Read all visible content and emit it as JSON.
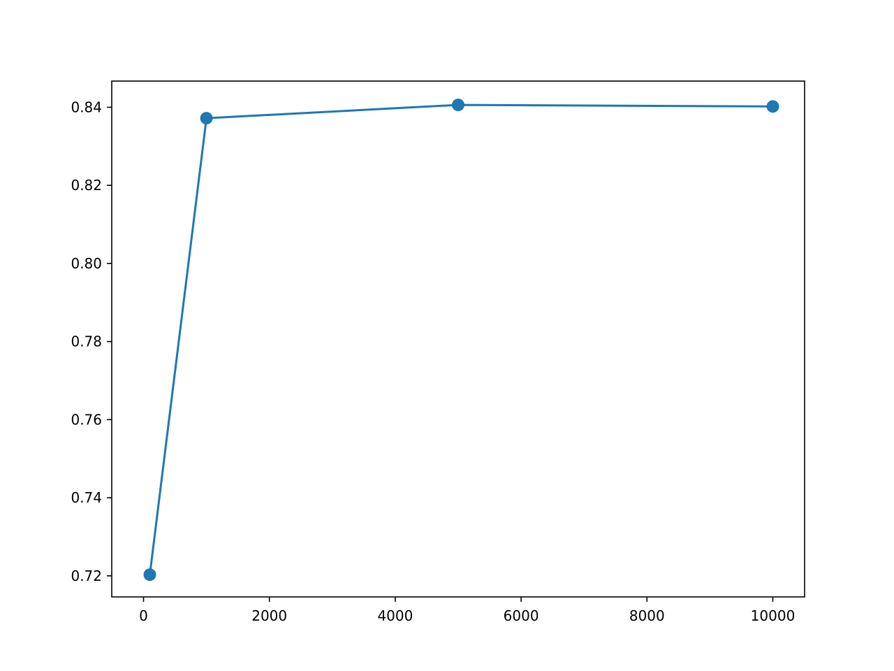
{
  "chart_data": {
    "type": "line",
    "title": "",
    "xlabel": "",
    "ylabel": "",
    "x": [
      100,
      1000,
      5000,
      10000
    ],
    "series": [
      {
        "values": [
          0.7203,
          0.8372,
          0.8406,
          0.8402
        ],
        "color": "#1f77b4",
        "marker": "circle"
      }
    ],
    "xlim": [
      -505,
      10505
    ],
    "ylim": [
      0.7146,
      0.8467
    ],
    "xticks": [
      0,
      2000,
      4000,
      6000,
      8000,
      10000
    ],
    "xtick_labels": [
      "0",
      "2000",
      "4000",
      "6000",
      "8000",
      "10000"
    ],
    "yticks": [
      0.72,
      0.74,
      0.76,
      0.78,
      0.8,
      0.82,
      0.84
    ],
    "ytick_labels": [
      "0.72",
      "0.74",
      "0.76",
      "0.78",
      "0.80",
      "0.82",
      "0.84"
    ],
    "grid": false,
    "legend": "none"
  }
}
